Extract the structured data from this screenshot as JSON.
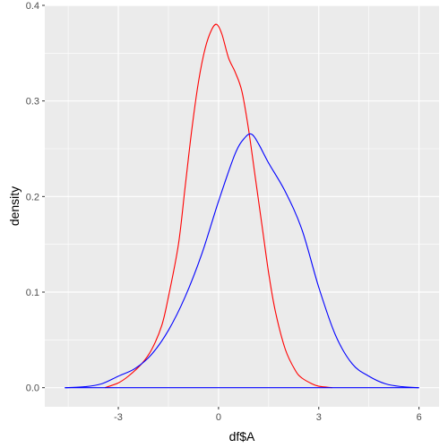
{
  "chart_data": {
    "type": "line",
    "chart_kind": "density",
    "title": "",
    "xlabel": "df$A",
    "ylabel": "density",
    "xlim": [
      -5.2,
      6.6
    ],
    "ylim": [
      -0.02,
      0.4
    ],
    "x_ticks": [
      -3,
      0,
      3,
      6
    ],
    "x_tick_labels": [
      "-3",
      "0",
      "3",
      "6"
    ],
    "y_ticks": [
      0.0,
      0.1,
      0.2,
      0.3,
      0.4
    ],
    "y_tick_labels": [
      "0.0",
      "0.1",
      "0.2",
      "0.3",
      "0.4"
    ],
    "grid": true,
    "legend": "none",
    "panel_background": "#ebebeb",
    "grid_color": "#ffffff",
    "series": [
      {
        "color": "#ff0000",
        "x": [
          -3.4,
          -3.0,
          -2.7,
          -2.3,
          -2.0,
          -1.7,
          -1.5,
          -1.2,
          -1.0,
          -0.8,
          -0.6,
          -0.4,
          -0.2,
          -0.05,
          0.1,
          0.3,
          0.5,
          0.7,
          0.9,
          1.1,
          1.3,
          1.5,
          1.7,
          2.0,
          2.3,
          2.5,
          2.8,
          3.0,
          3.4
        ],
        "y": [
          0.0,
          0.005,
          0.012,
          0.025,
          0.04,
          0.065,
          0.095,
          0.15,
          0.21,
          0.27,
          0.32,
          0.355,
          0.375,
          0.38,
          0.37,
          0.345,
          0.33,
          0.31,
          0.27,
          0.22,
          0.17,
          0.12,
          0.08,
          0.04,
          0.018,
          0.01,
          0.004,
          0.0015,
          0.0
        ]
      },
      {
        "color": "#0000ff",
        "x": [
          -4.6,
          -4.0,
          -3.5,
          -3.0,
          -2.5,
          -2.0,
          -1.5,
          -1.0,
          -0.5,
          0.0,
          0.5,
          0.8,
          1.0,
          1.2,
          1.5,
          2.0,
          2.5,
          3.0,
          3.5,
          4.0,
          4.5,
          5.0,
          5.5,
          6.0
        ],
        "y": [
          0.0,
          0.001,
          0.004,
          0.012,
          0.02,
          0.035,
          0.06,
          0.095,
          0.14,
          0.195,
          0.245,
          0.262,
          0.265,
          0.255,
          0.235,
          0.205,
          0.165,
          0.105,
          0.055,
          0.025,
          0.012,
          0.004,
          0.001,
          0.0
        ]
      },
      {
        "color": "#0000ff",
        "x": [
          -4.6,
          6.0
        ],
        "y": [
          0.0,
          0.0
        ]
      }
    ]
  }
}
